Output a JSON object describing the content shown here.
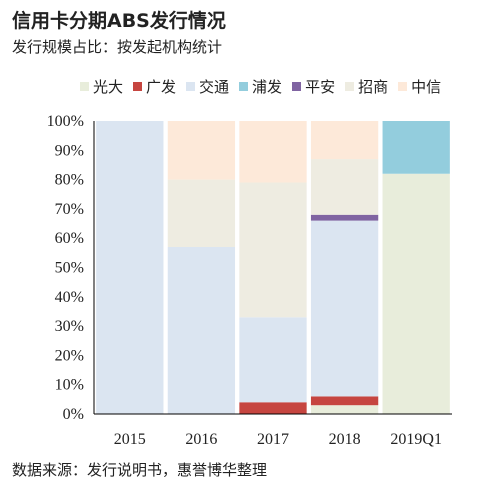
{
  "title": "信用卡分期ABS发行情况",
  "subtitle": "发行规模占比：按发起机构统计",
  "footer": "数据来源：发行说明书，惠誉博华整理",
  "chart_data": {
    "type": "bar",
    "stacked": true,
    "categories": [
      "2015",
      "2016",
      "2017",
      "2018",
      "2019Q1"
    ],
    "ylim": [
      0,
      100
    ],
    "yticks": [
      "0%",
      "10%",
      "20%",
      "30%",
      "40%",
      "50%",
      "60%",
      "70%",
      "80%",
      "90%",
      "100%"
    ],
    "legend_position": "top",
    "series": [
      {
        "name": "光大",
        "color": "#e8eddb",
        "values": [
          0,
          0,
          0,
          3,
          82
        ]
      },
      {
        "name": "广发",
        "color": "#c64540",
        "values": [
          0,
          0,
          4,
          3,
          0
        ]
      },
      {
        "name": "交通",
        "color": "#dbe5f1",
        "values": [
          100,
          57,
          29,
          60,
          0
        ]
      },
      {
        "name": "浦发",
        "color": "#93cddd",
        "values": [
          0,
          0,
          0,
          0,
          18
        ]
      },
      {
        "name": "平安",
        "color": "#8064a2",
        "values": [
          0,
          0,
          0,
          2,
          0
        ]
      },
      {
        "name": "招商",
        "color": "#eeece1",
        "values": [
          0,
          23,
          46,
          19,
          0
        ]
      },
      {
        "name": "中信",
        "color": "#fde9d9",
        "values": [
          0,
          20,
          21,
          13,
          0
        ]
      }
    ]
  }
}
